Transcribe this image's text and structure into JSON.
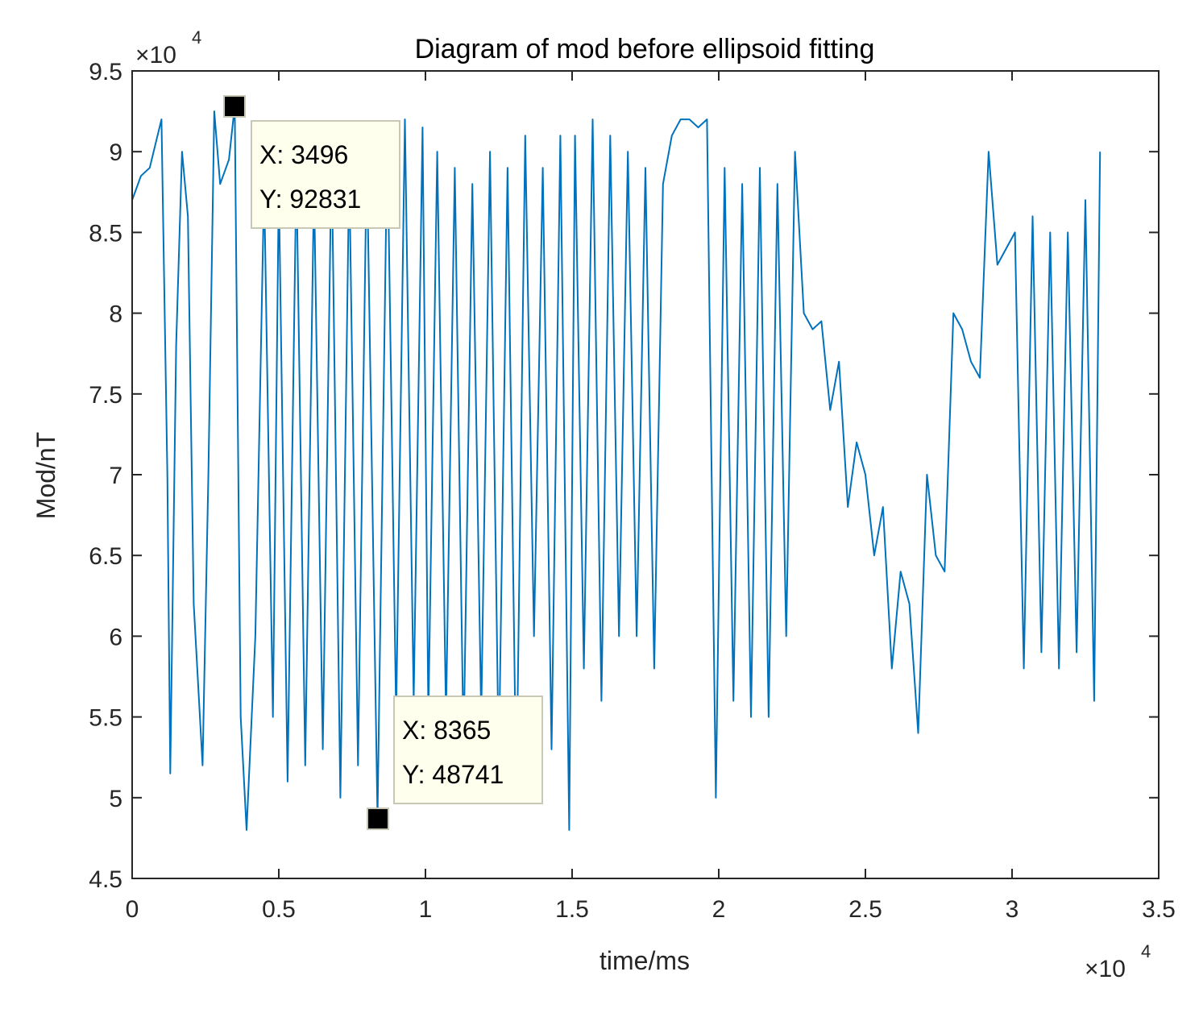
{
  "chart_data": {
    "type": "line",
    "title": "Diagram of mod before ellipsoid fitting",
    "xlabel": "time/ms",
    "ylabel": "Mod/nT",
    "xlim": [
      0,
      35000
    ],
    "ylim": [
      45000,
      95000
    ],
    "x_ticks": [
      0,
      5000,
      10000,
      15000,
      20000,
      25000,
      30000,
      35000
    ],
    "x_tick_labels": [
      "0",
      "0.5",
      "1",
      "1.5",
      "2",
      "2.5",
      "3",
      "3.5"
    ],
    "y_ticks": [
      45000,
      50000,
      55000,
      60000,
      65000,
      70000,
      75000,
      80000,
      85000,
      90000,
      95000
    ],
    "y_tick_labels": [
      "4.5",
      "5",
      "5.5",
      "6",
      "6.5",
      "7",
      "7.5",
      "8",
      "8.5",
      "9",
      "9.5"
    ],
    "x_exponent_label": "×10",
    "x_exponent_power": "4",
    "y_exponent_label": "×10",
    "y_exponent_power": "4",
    "series": [
      {
        "name": "mod",
        "color": "#0072BD",
        "x": [
          0,
          300,
          600,
          1000,
          1200,
          1300,
          1500,
          1700,
          1900,
          2100,
          2400,
          2600,
          2800,
          3000,
          3300,
          3496,
          3700,
          3900,
          4200,
          4500,
          4800,
          5000,
          5300,
          5600,
          5900,
          6200,
          6500,
          6800,
          7100,
          7400,
          7700,
          8000,
          8365,
          8700,
          9000,
          9300,
          9600,
          9900,
          10100,
          10400,
          10700,
          11000,
          11300,
          11600,
          11900,
          12200,
          12500,
          12800,
          13100,
          13400,
          13700,
          14000,
          14300,
          14600,
          14900,
          15100,
          15400,
          15700,
          16000,
          16300,
          16600,
          16900,
          17200,
          17500,
          17800,
          18100,
          18400,
          18700,
          19000,
          19300,
          19600,
          19900,
          20200,
          20500,
          20800,
          21100,
          21400,
          21700,
          22000,
          22300,
          22600,
          22900,
          23200,
          23500,
          23800,
          24100,
          24400,
          24700,
          25000,
          25300,
          25600,
          25900,
          26200,
          26500,
          26800,
          27100,
          27400,
          27700,
          28000,
          28300,
          28600,
          28900,
          29200,
          29500,
          29800,
          30100,
          30400,
          30700,
          31000,
          31300,
          31600,
          31900,
          32200,
          32500,
          32800,
          33000
        ],
        "y": [
          87000,
          88500,
          89000,
          92000,
          70000,
          51500,
          78000,
          90000,
          86000,
          62000,
          52000,
          70000,
          92500,
          88000,
          89500,
          92831,
          55000,
          48000,
          60000,
          88000,
          55000,
          88000,
          51000,
          89000,
          52000,
          88000,
          53000,
          90000,
          50000,
          89000,
          52000,
          90000,
          48741,
          91000,
          55000,
          92000,
          56000,
          91500,
          55000,
          90000,
          55000,
          89000,
          53000,
          88000,
          55000,
          90000,
          52000,
          89000,
          50000,
          91000,
          60000,
          89000,
          53000,
          91000,
          48000,
          91000,
          58000,
          92000,
          56000,
          91000,
          60000,
          90000,
          60000,
          89000,
          58000,
          88000,
          91000,
          92000,
          92000,
          91500,
          92000,
          50000,
          89000,
          56000,
          88000,
          55000,
          89000,
          55000,
          88000,
          60000,
          90000,
          80000,
          79000,
          79500,
          74000,
          77000,
          68000,
          72000,
          70000,
          65000,
          68000,
          58000,
          64000,
          62000,
          54000,
          70000,
          65000,
          64000,
          80000,
          79000,
          77000,
          76000,
          90000,
          83000,
          84000,
          85000,
          58000,
          86000,
          59000,
          85000,
          58000,
          85000,
          59000,
          87000,
          56000,
          90000
        ]
      }
    ],
    "datatips": [
      {
        "x": 3496,
        "y": 92831,
        "x_text": "X: 3496",
        "y_text": "Y: 92831"
      },
      {
        "x": 8365,
        "y": 48741,
        "x_text": "X: 8365",
        "y_text": "Y: 48741"
      }
    ]
  },
  "colors": {
    "line": "#0072BD",
    "datatip_bg": "#FFFFEE",
    "datatip_border": "#C8C8B4",
    "marker": "#000000"
  }
}
